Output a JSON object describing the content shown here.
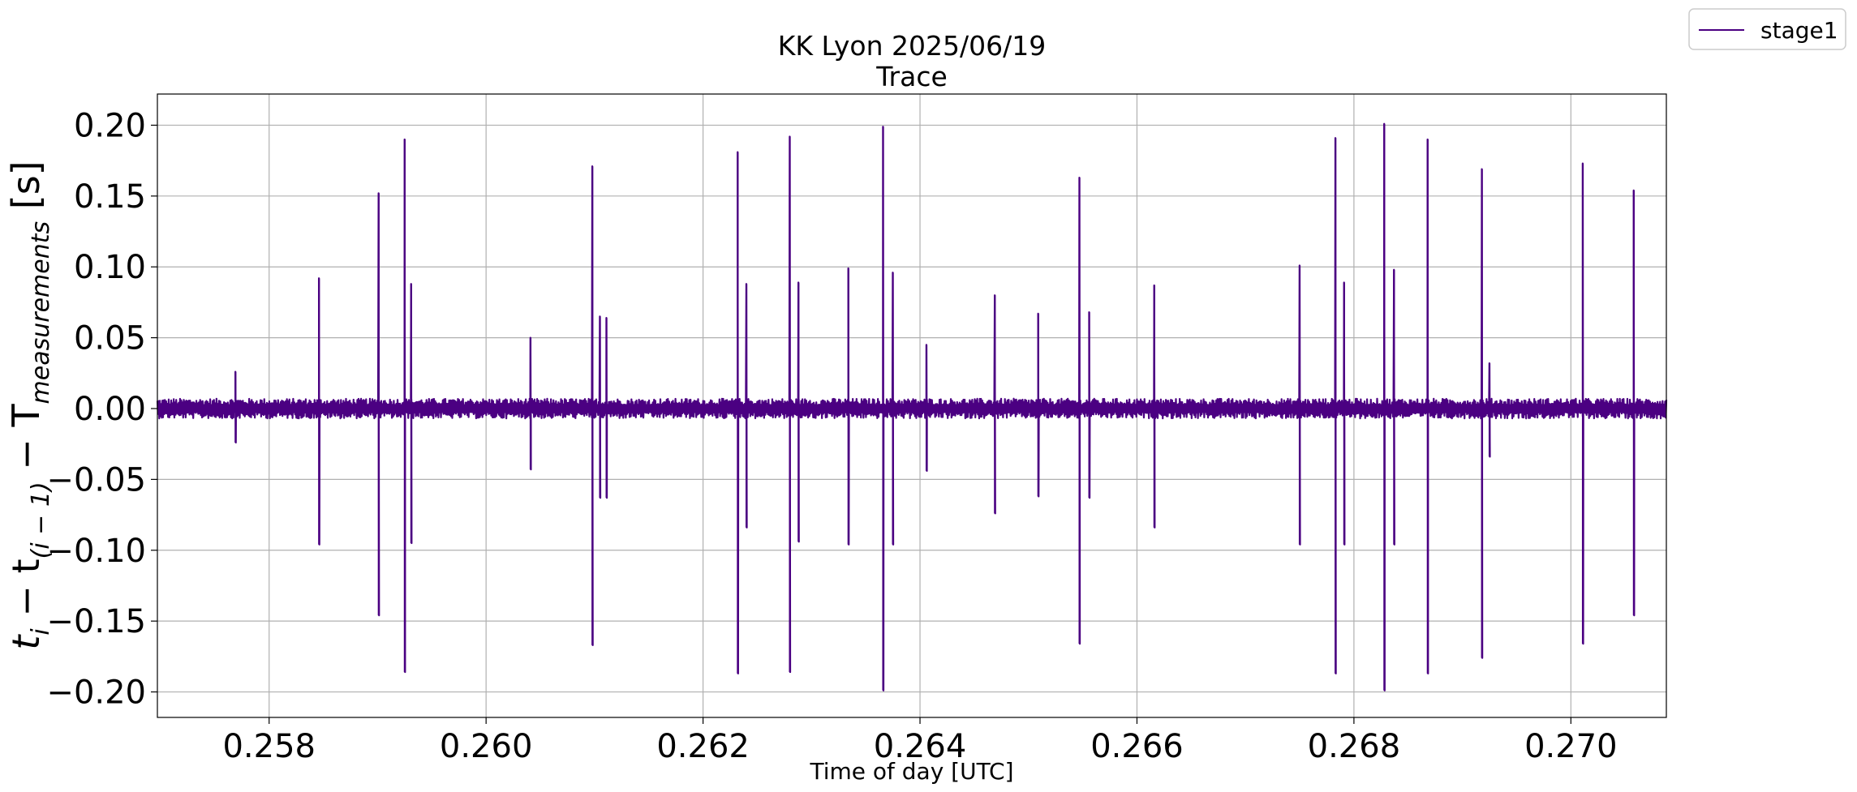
{
  "chart_data": {
    "type": "line",
    "title": "KK Lyon 2025/06/19",
    "subtitle": "Trace",
    "xlabel": "Time of day [UTC]",
    "ylabel_main": "t",
    "ylabel_sub_i": "i",
    "ylabel_mid": " − t",
    "ylabel_sub_prev": "(i − 1)",
    "ylabel_mid2": " − T",
    "ylabel_sub_meas": "measurements",
    "ylabel_unit": " [s]",
    "xlim": [
      0.25697,
      0.27088
    ],
    "ylim": [
      -0.218,
      0.222
    ],
    "x_ticks": [
      0.258,
      0.26,
      0.262,
      0.264,
      0.266,
      0.268,
      0.27
    ],
    "x_tick_labels": [
      "0.258",
      "0.260",
      "0.262",
      "0.264",
      "0.266",
      "0.268",
      "0.270"
    ],
    "y_ticks": [
      0.2,
      0.15,
      0.1,
      0.05,
      0.0,
      -0.05,
      -0.1,
      -0.15,
      -0.2
    ],
    "y_tick_labels": [
      "0.20",
      "0.15",
      "0.10",
      "0.05",
      "0.00",
      "−0.05",
      "−0.10",
      "−0.15",
      "−0.20"
    ],
    "grid": true,
    "legend_position": "outside top-right",
    "noise_amplitude": 0.007,
    "series": [
      {
        "name": "stage1",
        "color": "#4b0082",
        "spikes": [
          {
            "x": 0.25769,
            "up": 0.026,
            "down": -0.024
          },
          {
            "x": 0.25846,
            "up": 0.092,
            "down": -0.096
          },
          {
            "x": 0.25901,
            "up": 0.152,
            "down": -0.146
          },
          {
            "x": 0.25925,
            "up": 0.19,
            "down": -0.186
          },
          {
            "x": 0.25931,
            "up": 0.088,
            "down": -0.095
          },
          {
            "x": 0.26041,
            "up": 0.05,
            "down": -0.043
          },
          {
            "x": 0.26098,
            "up": 0.171,
            "down": -0.167
          },
          {
            "x": 0.26105,
            "up": 0.065,
            "down": -0.063
          },
          {
            "x": 0.26111,
            "up": 0.064,
            "down": -0.063
          },
          {
            "x": 0.26232,
            "up": 0.181,
            "down": -0.187
          },
          {
            "x": 0.2624,
            "up": 0.088,
            "down": -0.084
          },
          {
            "x": 0.2628,
            "up": 0.192,
            "down": -0.186
          },
          {
            "x": 0.26288,
            "up": 0.089,
            "down": -0.094
          },
          {
            "x": 0.26334,
            "up": 0.099,
            "down": -0.096
          },
          {
            "x": 0.26366,
            "up": 0.199,
            "down": -0.199
          },
          {
            "x": 0.26375,
            "up": 0.096,
            "down": -0.096
          },
          {
            "x": 0.26406,
            "up": 0.045,
            "down": -0.044
          },
          {
            "x": 0.26469,
            "up": 0.08,
            "down": -0.074
          },
          {
            "x": 0.26509,
            "up": 0.067,
            "down": -0.062
          },
          {
            "x": 0.26547,
            "up": 0.163,
            "down": -0.166
          },
          {
            "x": 0.26556,
            "up": 0.068,
            "down": -0.063
          },
          {
            "x": 0.26616,
            "up": 0.087,
            "down": -0.084
          },
          {
            "x": 0.2675,
            "up": 0.101,
            "down": -0.096
          },
          {
            "x": 0.26783,
            "up": 0.191,
            "down": -0.187
          },
          {
            "x": 0.26791,
            "up": 0.089,
            "down": -0.096
          },
          {
            "x": 0.26828,
            "up": 0.201,
            "down": -0.199
          },
          {
            "x": 0.26837,
            "up": 0.098,
            "down": -0.096
          },
          {
            "x": 0.26868,
            "up": 0.19,
            "down": -0.187
          },
          {
            "x": 0.26918,
            "up": 0.169,
            "down": -0.176
          },
          {
            "x": 0.26925,
            "up": 0.032,
            "down": -0.034
          },
          {
            "x": 0.27011,
            "up": 0.173,
            "down": -0.166
          },
          {
            "x": 0.27058,
            "up": 0.154,
            "down": -0.146
          }
        ]
      }
    ]
  }
}
